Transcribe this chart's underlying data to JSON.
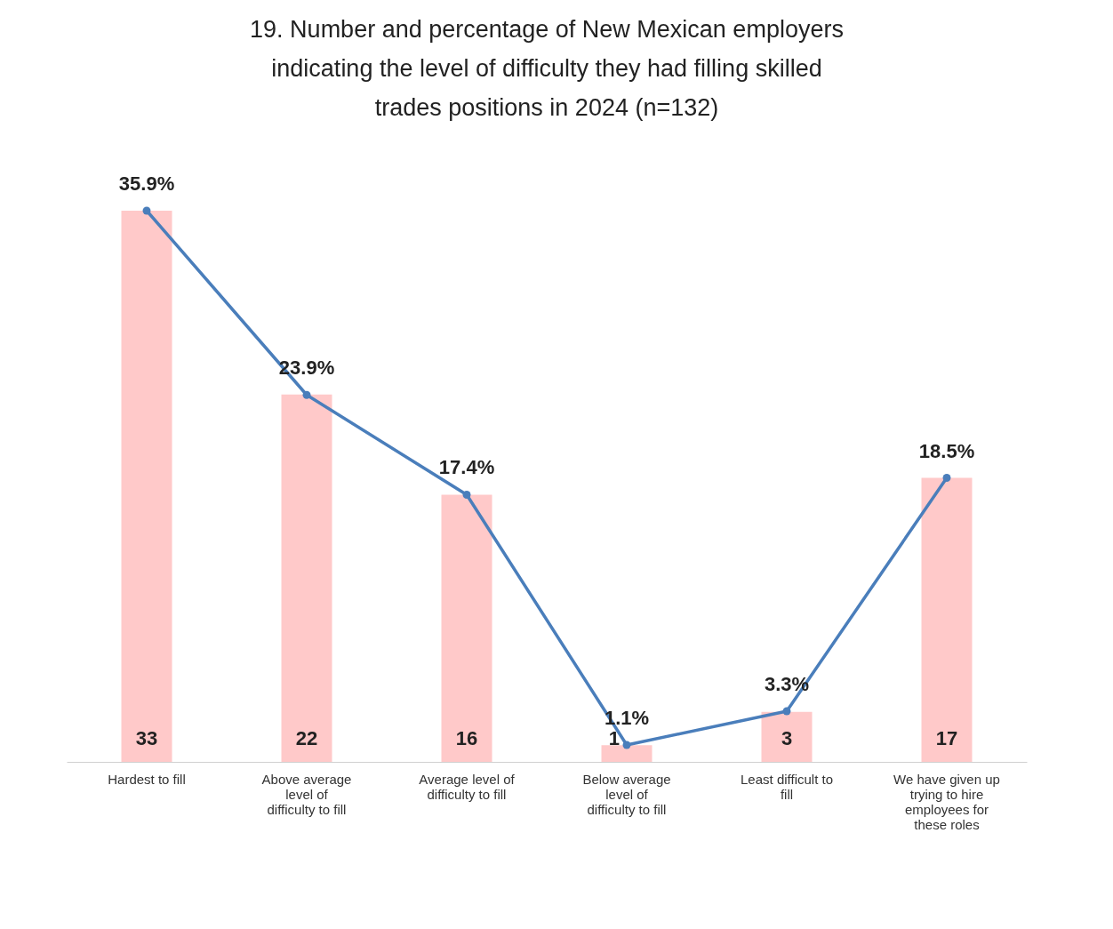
{
  "chart_data": {
    "type": "bar",
    "title": "19. Number and percentage of New Mexican employers indicating the level of difficulty they had filling skilled trades positions in 2024 (n=132)",
    "categories": [
      "Hardest to fill",
      "Above average level of difficulty to fill",
      "Average level of difficulty to fill",
      "Below average level of difficulty to fill",
      "Least difficult to fill",
      "We have given up trying to hire employees for these roles"
    ],
    "series": [
      {
        "color": "#ffc9c9",
        "values": [
          33,
          22,
          16,
          1,
          3,
          17
        ]
      },
      {
        "type": "line",
        "axis": "y2",
        "color": "#4a7ebb",
        "values": [
          35.9,
          23.9,
          17.4,
          1.1,
          3.3,
          18.5
        ],
        "value_labels": [
          "35.9%",
          "23.9%",
          "17.4%",
          "1.1%",
          "3.3%",
          "18.5%"
        ]
      }
    ],
    "data_labels": true,
    "marker": "circle",
    "tick_labels": "x"
  }
}
